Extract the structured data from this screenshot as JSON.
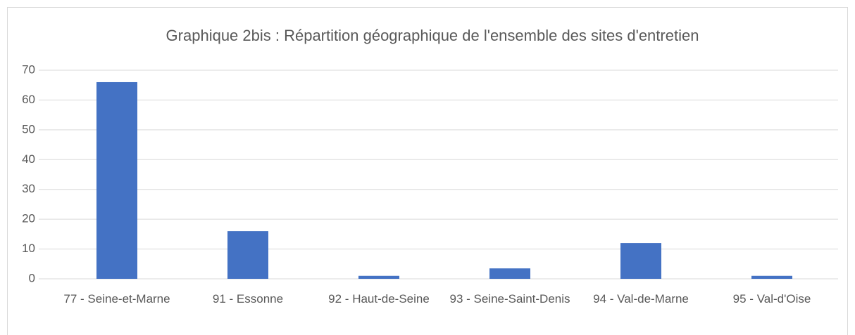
{
  "chart_data": {
    "type": "bar",
    "title": "Graphique 2bis : Répartition géographique de l'ensemble des sites d'entretien",
    "categories": [
      "77 - Seine-et-Marne",
      "91 - Essonne",
      "92 - Haut-de-Seine",
      "93 - Seine-Saint-Denis",
      "94 - Val-de-Marne",
      "95 - Val-d'Oise"
    ],
    "values": [
      66,
      16,
      1,
      3.5,
      12,
      1
    ],
    "color": "#4472c4",
    "ylim": [
      0,
      70
    ],
    "yticks": [
      0,
      10,
      20,
      30,
      40,
      50,
      60,
      70
    ],
    "grid": true
  }
}
